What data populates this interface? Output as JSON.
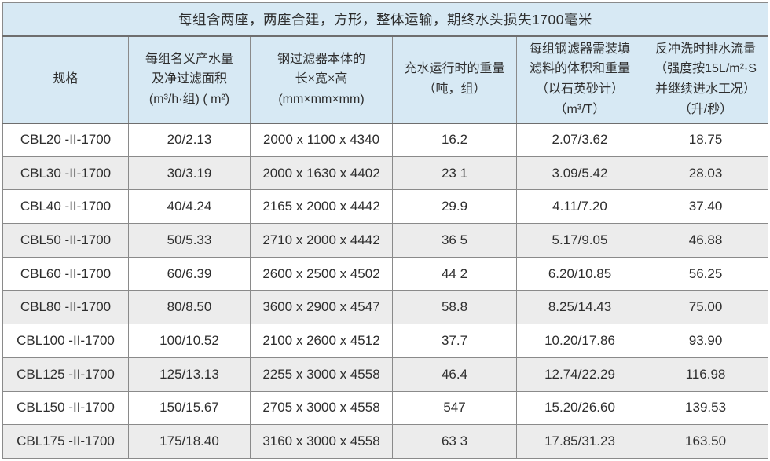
{
  "table": {
    "title": "每组含两座，两座合建，方形，整体运输，期终水头损失1700毫米",
    "headers": [
      "规格",
      "每组名义产水量\n及净过滤面积\n(m³/h·组) ( m²)",
      "钢过滤器本体的\n长×宽×高\n(mm×mm×mm)",
      "充水运行时的重量\n（吨，组）",
      "每组钢滤器需装填\n滤料的体积和重量\n（以石英砂计）\n（m³/T）",
      "反冲洗时排水流量\n（强度按15L/m²·S\n并继续进水工况）\n（升/秒）"
    ],
    "rows": [
      [
        "CBL20 -II-1700",
        "20/2.13",
        "2000 x 1100 x 4340",
        "16.2",
        "2.07/3.62",
        "18.75"
      ],
      [
        "CBL30 -II-1700",
        "30/3.19",
        "2000 x 1630 x 4402",
        "23 1",
        "3.09/5.42",
        "28.03"
      ],
      [
        "CBL40 -II-1700",
        "40/4.24",
        "2165 x 2000 x 4442",
        "29.9",
        "4.11/7.20",
        "37.40"
      ],
      [
        "CBL50 -II-1700",
        "50/5.33",
        "2710 x 2000 x 4442",
        "36 5",
        "5.17/9.05",
        "46.88"
      ],
      [
        "CBL60 -II-1700",
        "60/6.39",
        "2600 x 2500 x 4502",
        "44 2",
        "6.20/10.85",
        "56.25"
      ],
      [
        "CBL80 -II-1700",
        "80/8.50",
        "3600 x 2900 x 4547",
        "58.8",
        "8.25/14.43",
        "75.00"
      ],
      [
        "CBL100 -II-1700",
        "100/10.52",
        "2100 x 2600 x 4512",
        "37.7",
        "10.20/17.86",
        "93.90"
      ],
      [
        "CBL125 -II-1700",
        "125/13.13",
        "2255 x 3000 x 4558",
        "46.4",
        "12.74/22.29",
        "116.98"
      ],
      [
        "CBL150 -II-1700",
        "150/15.67",
        "2705 x 3000 x 4558",
        "547",
        "15.20/26.60",
        "139.53"
      ],
      [
        "CBL175 -II-1700",
        "175/18.40",
        "3160 x 3000 x 4558",
        "63 3",
        "17.85/31.23",
        "163.50"
      ]
    ],
    "colors": {
      "header_bg": "#d7e9f4",
      "row_bg": "#ffffff",
      "row_alt_bg": "#ececec",
      "border": "#8a8a8a",
      "text": "#2e2e2e"
    }
  }
}
